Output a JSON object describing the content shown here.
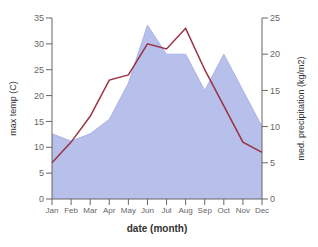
{
  "chart_data": {
    "type": "line",
    "xlabel": "date (month)",
    "ylabel": "max temp (C)",
    "y2label": "med. precipitation (kg/m2)",
    "categories": [
      "Jan",
      "Feb",
      "Mar",
      "Apr",
      "May",
      "Jun",
      "Jul",
      "Aug",
      "Sep",
      "Oct",
      "Nov",
      "Dec"
    ],
    "series": [
      {
        "type": "area",
        "axis": "y2",
        "color": "#aab4e8",
        "values": [
          9,
          8,
          9,
          11,
          16,
          24,
          20,
          20,
          15,
          20,
          15,
          10
        ]
      },
      {
        "type": "line",
        "color": "#993344",
        "values": [
          7,
          11,
          16,
          23,
          24,
          30,
          29,
          33,
          25,
          18,
          11,
          9
        ]
      }
    ],
    "ylim": [
      0,
      35
    ],
    "yticks": [
      0,
      5,
      10,
      15,
      20,
      25,
      30,
      35
    ],
    "y2lim": [
      0,
      25
    ],
    "y2ticks": [
      0,
      5,
      10,
      15,
      20,
      25
    ],
    "grid": false
  }
}
